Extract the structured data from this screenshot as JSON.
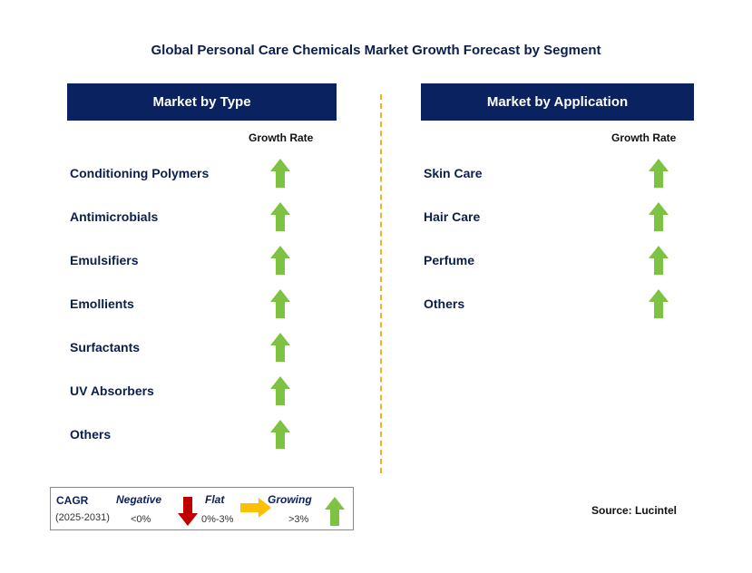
{
  "title": "Global Personal Care Chemicals Market Growth Forecast by Segment",
  "colors": {
    "header_bg": "#0b2260",
    "up_arrow": "#7dc242",
    "down_arrow": "#c00000",
    "flat_arrow": "#ffc000",
    "divider": "#f2b21b"
  },
  "chart_data": [
    {
      "type": "table",
      "title": "Market by Type",
      "column_header": "Growth Rate",
      "rows": [
        {
          "label": "Conditioning Polymers",
          "trend": "growing"
        },
        {
          "label": "Antimicrobials",
          "trend": "growing"
        },
        {
          "label": "Emulsifiers",
          "trend": "growing"
        },
        {
          "label": "Emollients",
          "trend": "growing"
        },
        {
          "label": "Surfactants",
          "trend": "growing"
        },
        {
          "label": "UV Absorbers",
          "trend": "growing"
        },
        {
          "label": "Others",
          "trend": "growing"
        }
      ]
    },
    {
      "type": "table",
      "title": "Market by Application",
      "column_header": "Growth Rate",
      "rows": [
        {
          "label": "Skin Care",
          "trend": "growing"
        },
        {
          "label": "Hair Care",
          "trend": "growing"
        },
        {
          "label": "Perfume",
          "trend": "growing"
        },
        {
          "label": "Others",
          "trend": "growing"
        }
      ]
    }
  ],
  "legend": {
    "cagr_label": "CAGR",
    "period": "(2025-2031)",
    "negative_label": "Negative",
    "negative_range": "<0%",
    "flat_label": "Flat",
    "flat_range": "0%-3%",
    "growing_label": "Growing",
    "growing_range": ">3%"
  },
  "source": "Source: Lucintel"
}
